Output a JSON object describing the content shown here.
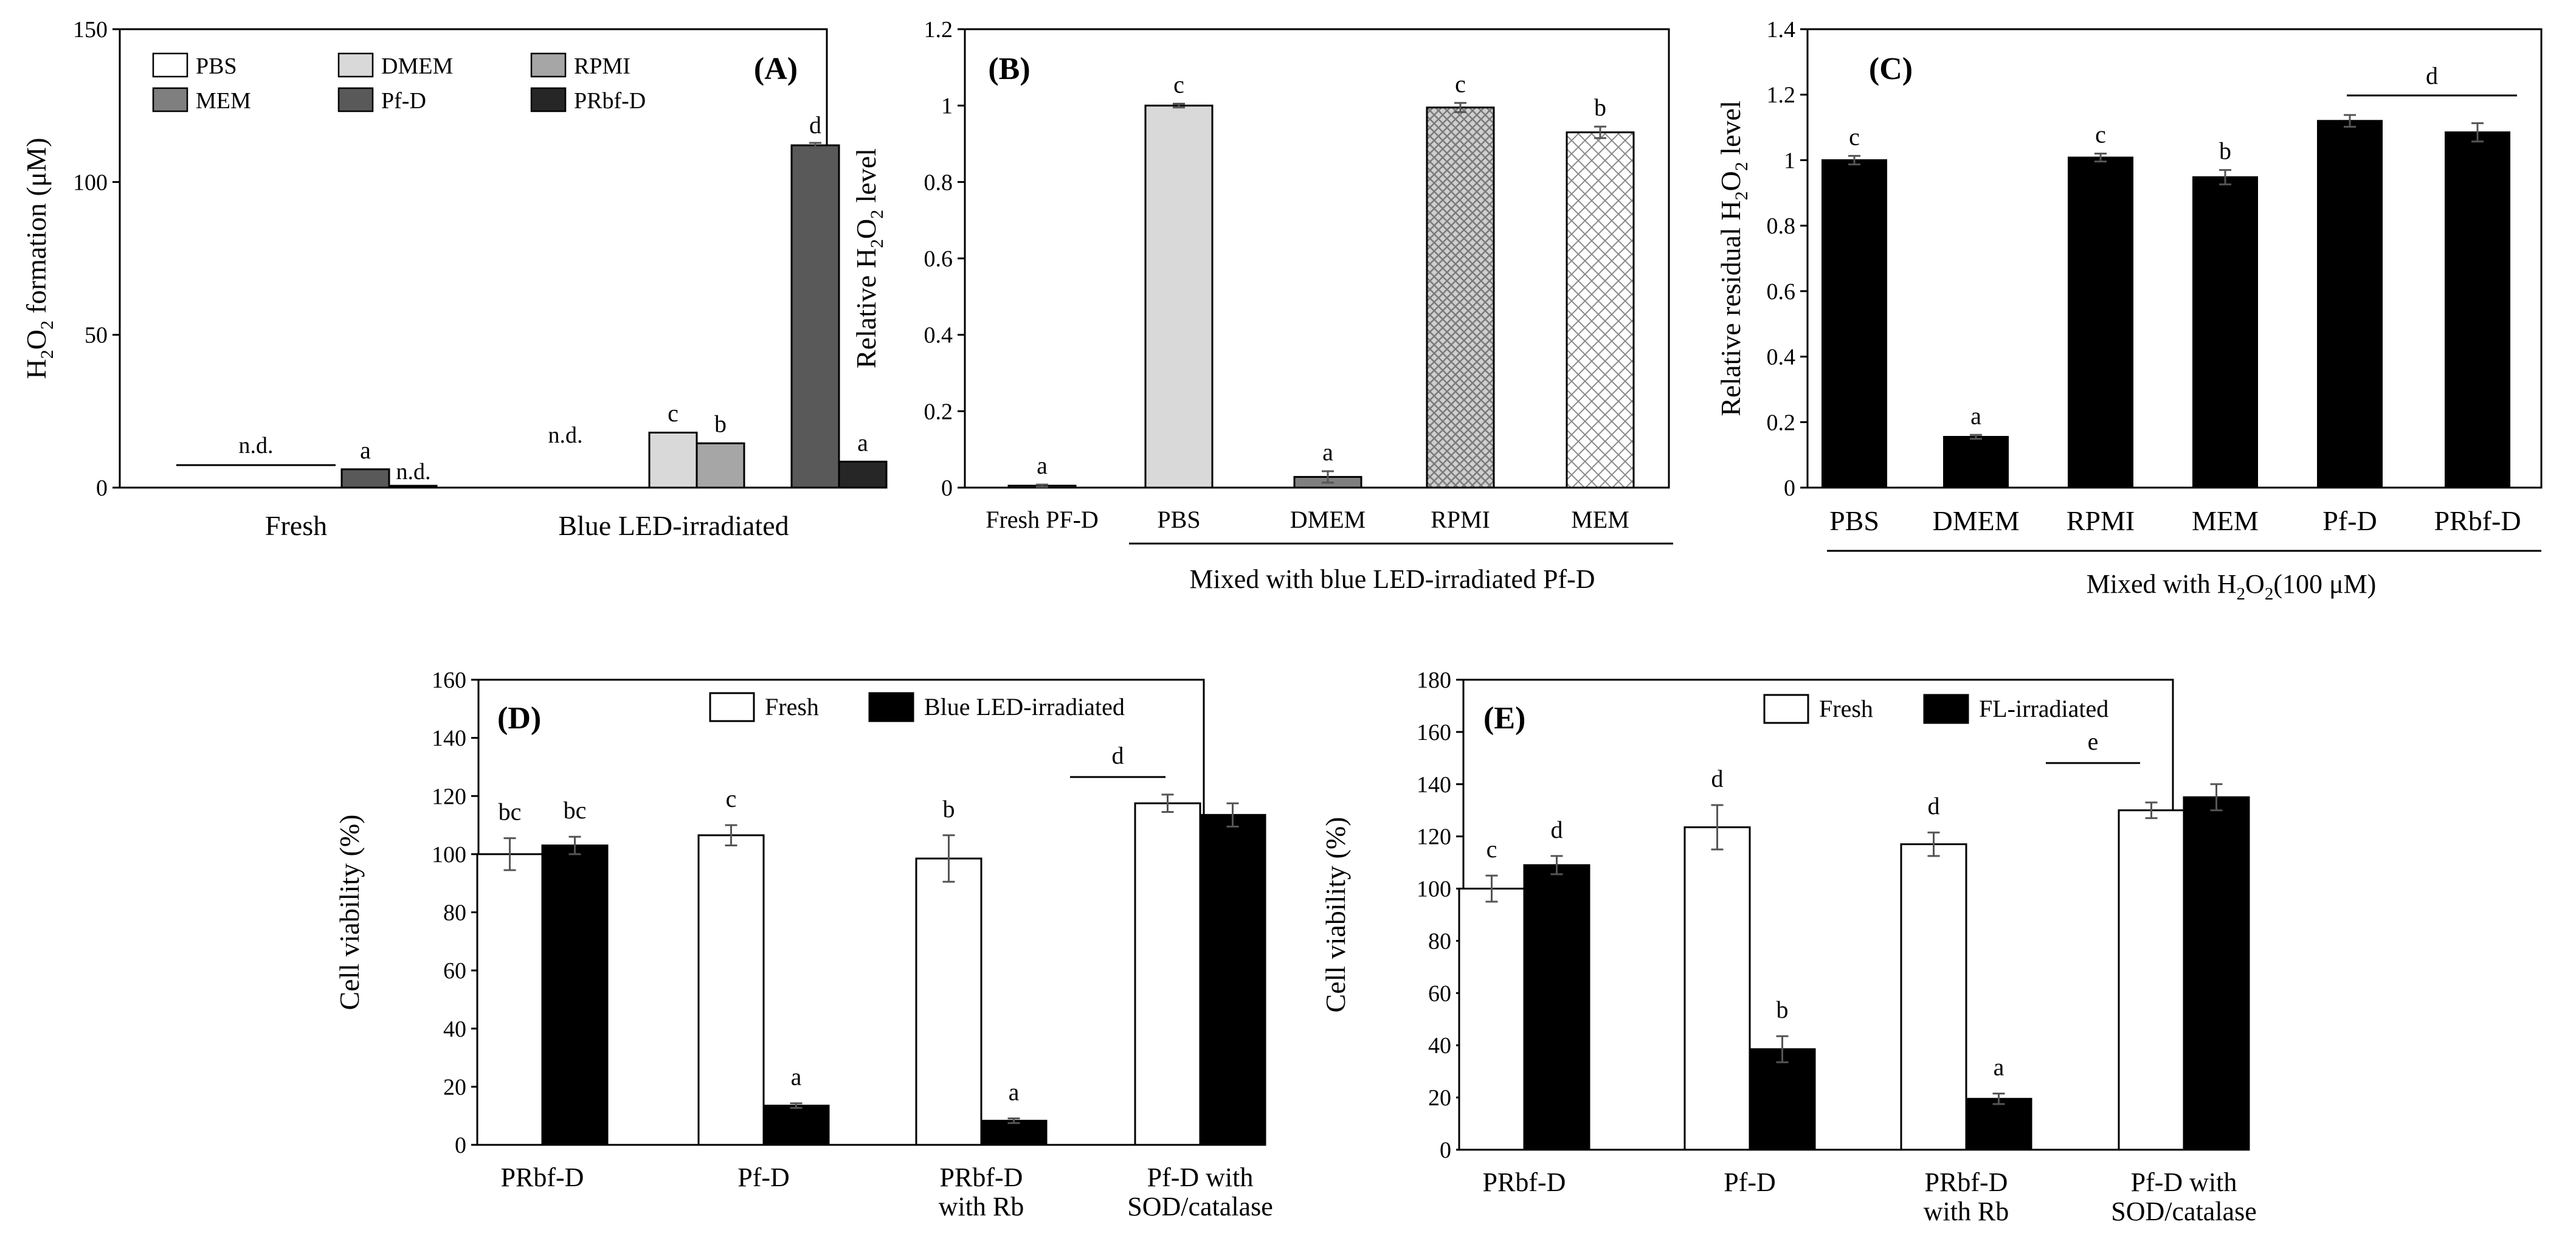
{
  "colors": {
    "white": "#ffffff",
    "black": "#000000",
    "lightgray": "#d9d9d9",
    "midgray": "#a6a6a6",
    "darkgray": "#7f7f7f",
    "charcoal": "#595959",
    "nearblack": "#262626",
    "errorbar": "#555555"
  },
  "chart_data": [
    {
      "id": "A",
      "type": "bar",
      "panel_label": "(A)",
      "ylabel_parts": [
        "H",
        "2",
        "O",
        "2",
        " formation (μM)"
      ],
      "ylim": [
        0,
        150
      ],
      "yticks": [
        "0",
        "50",
        "100",
        "150"
      ],
      "groups": [
        "Fresh",
        "Blue LED-irradiated"
      ],
      "legend": [
        "PBS",
        "DMEM",
        "RPMI",
        "MEM",
        "Pf-D",
        "PRbf-D"
      ],
      "series": [
        {
          "name": "PBS",
          "fill": "white",
          "values": [
            0,
            0
          ],
          "errors": [
            0,
            0
          ],
          "letters": [
            "",
            ""
          ]
        },
        {
          "name": "DMEM",
          "fill": "lightgray",
          "values": [
            0,
            18.0
          ],
          "errors": [
            0,
            0.5
          ],
          "letters": [
            "",
            "c"
          ]
        },
        {
          "name": "RPMI",
          "fill": "midgray",
          "values": [
            0,
            14.5
          ],
          "errors": [
            0,
            0.5
          ],
          "letters": [
            "",
            "b"
          ]
        },
        {
          "name": "MEM",
          "fill": "darkgray",
          "values": [
            0,
            0
          ],
          "errors": [
            0,
            0
          ],
          "letters": [
            "",
            ""
          ]
        },
        {
          "name": "Pf-D",
          "fill": "charcoal",
          "values": [
            6.0,
            112.0
          ],
          "errors": [
            0.4,
            0.8
          ],
          "letters": [
            "a",
            "d"
          ]
        },
        {
          "name": "PRbf-D",
          "fill": "nearblack",
          "values": [
            0.6,
            8.5
          ],
          "errors": [
            0,
            0.4
          ],
          "letters": [
            "",
            "a"
          ]
        }
      ],
      "nd_label": "n.d."
    },
    {
      "id": "B",
      "type": "bar",
      "panel_label": "(B)",
      "ylabel_parts": [
        "Relative H",
        "2",
        "O",
        "2",
        " level"
      ],
      "ylim": [
        0,
        1.2
      ],
      "yticks": [
        "0",
        "0.2",
        "0.4",
        "0.6",
        "0.8",
        "1",
        "1.2"
      ],
      "categories": [
        "Fresh PF-D",
        "PBS",
        "DMEM",
        "RPMI",
        "MEM"
      ],
      "values": [
        0.005,
        1.0,
        0.028,
        0.995,
        0.93
      ],
      "errors": [
        0.003,
        0.005,
        0.015,
        0.012,
        0.015
      ],
      "letters": [
        "a",
        "c",
        "a",
        "c",
        "b"
      ],
      "fills": [
        "lightgray",
        "lightgray",
        "darkgray",
        "hatch",
        "crosshatch"
      ],
      "group_label": "Mixed with blue LED-irradiated  Pf-D"
    },
    {
      "id": "C",
      "type": "bar",
      "panel_label": "(C)",
      "ylabel_parts": [
        "Relative residual H",
        "2",
        "O",
        "2",
        " level"
      ],
      "ylim": [
        0,
        1.4
      ],
      "yticks": [
        "0",
        "0.2",
        "0.4",
        "0.6",
        "0.8",
        "1",
        "1.2",
        "1.4"
      ],
      "categories": [
        "PBS",
        "DMEM",
        "RPMI",
        "MEM",
        "Pf-D",
        "PRbf-D"
      ],
      "values": [
        1.0,
        0.155,
        1.008,
        0.948,
        1.12,
        1.085
      ],
      "errors": [
        0.013,
        0.006,
        0.012,
        0.022,
        0.018,
        0.028
      ],
      "letters": [
        "c",
        "a",
        "c",
        "b",
        "",
        ""
      ],
      "bracket_letter": "d",
      "group_label_parts": [
        "Mixed with H",
        "2",
        "O",
        "2",
        "(100 μM)"
      ]
    },
    {
      "id": "D",
      "type": "bar",
      "panel_label": "(D)",
      "ylabel": "Cell viability (%)",
      "ylim": [
        0,
        160
      ],
      "yticks": [
        "0",
        "20",
        "40",
        "60",
        "80",
        "100",
        "120",
        "140",
        "160"
      ],
      "categories": [
        [
          "PRbf-D"
        ],
        [
          "Pf-D"
        ],
        [
          "PRbf-D",
          "with Rb"
        ],
        [
          "Pf-D with",
          "SOD/catalase"
        ]
      ],
      "series": [
        {
          "name": "Fresh",
          "values": [
            100,
            106.5,
            98.5,
            117.5
          ],
          "errors": [
            5.5,
            3.5,
            8.0,
            3.0
          ],
          "letters": [
            "bc",
            "c",
            "b",
            ""
          ]
        },
        {
          "name": "Blue LED-irradiated",
          "values": [
            103,
            13.5,
            8.3,
            113.5
          ],
          "errors": [
            3.0,
            0.8,
            0.8,
            4.0
          ],
          "letters": [
            "bc",
            "a",
            "a",
            ""
          ]
        }
      ],
      "bracket_letter": "d"
    },
    {
      "id": "E",
      "type": "bar",
      "panel_label": "(E)",
      "ylabel": "Cell viability (%)",
      "ylim": [
        0,
        180
      ],
      "yticks": [
        "0",
        "20",
        "40",
        "60",
        "80",
        "100",
        "120",
        "140",
        "160",
        "180"
      ],
      "categories": [
        [
          "PRbf-D"
        ],
        [
          "Pf-D"
        ],
        [
          "PRbf-D",
          "with Rb"
        ],
        [
          "Pf-D with",
          "SOD/catalase"
        ]
      ],
      "series": [
        {
          "name": "Fresh",
          "values": [
            100,
            123.5,
            117,
            130
          ],
          "errors": [
            5.0,
            8.5,
            4.5,
            3.0
          ],
          "letters": [
            "c",
            "d",
            "d",
            ""
          ]
        },
        {
          "name": "FL-irradiated",
          "values": [
            109,
            38.5,
            19.5,
            135
          ],
          "errors": [
            3.5,
            5.0,
            2.0,
            5.0
          ],
          "letters": [
            "d",
            "b",
            "a",
            ""
          ]
        }
      ],
      "bracket_letter": "e"
    }
  ]
}
